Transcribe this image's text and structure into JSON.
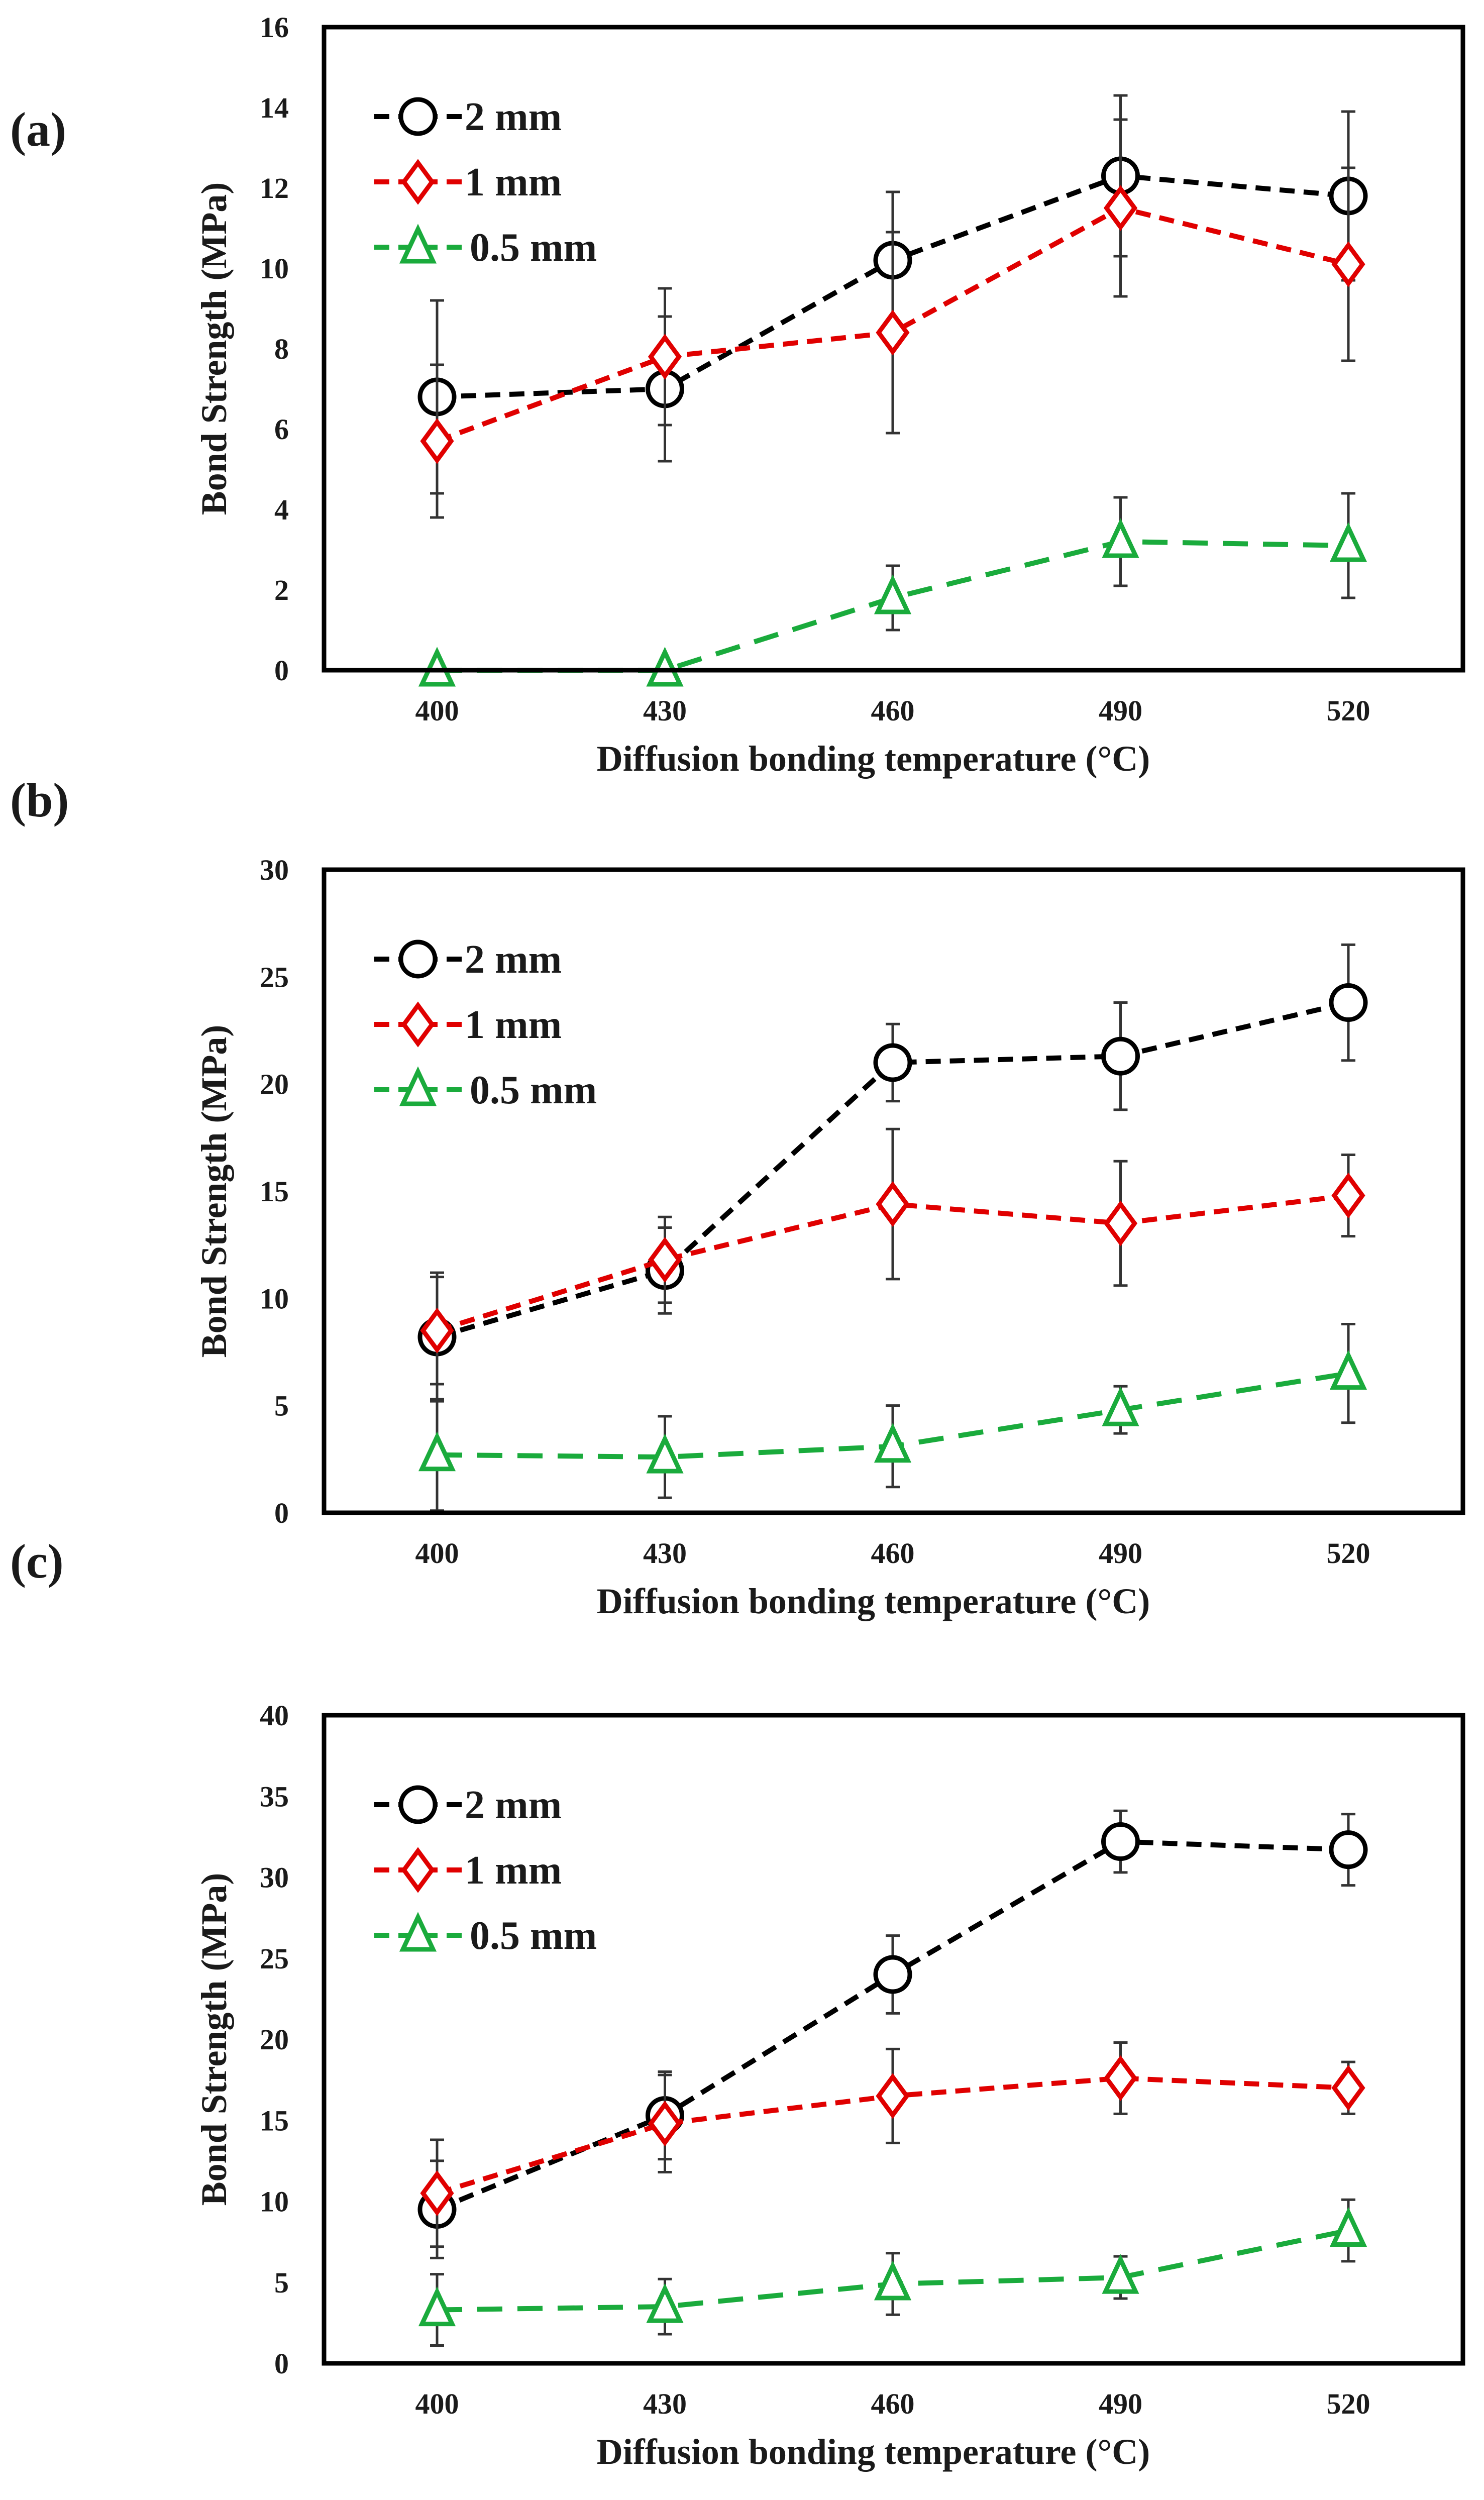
{
  "colors": {
    "2 mm": "#000000",
    "1 mm": "#e00000",
    "0.5 mm": "#1aab3c",
    "errorbar": "#333333"
  },
  "chart_data": [
    {
      "panel_label": "(a)",
      "type": "line",
      "xlabel": "Diffusion bonding temperature (°C)",
      "ylabel": "Bond Strength (MPa)",
      "categories": [
        "400",
        "430",
        "460",
        "490",
        "520"
      ],
      "ylim": [
        0,
        16
      ],
      "yticks": [
        0,
        2,
        4,
        6,
        8,
        10,
        12,
        14,
        16
      ],
      "legend_position": "top-left",
      "series": [
        {
          "name": "2 mm",
          "marker": "circle",
          "values": [
            6.8,
            7.0,
            10.2,
            12.3,
            11.8
          ],
          "errors": [
            2.4,
            1.8,
            1.7,
            2.0,
            2.1
          ]
        },
        {
          "name": "1 mm",
          "marker": "diamond",
          "values": [
            5.7,
            7.8,
            8.4,
            11.5,
            10.1
          ],
          "errors": [
            1.9,
            1.7,
            2.5,
            2.2,
            2.4
          ]
        },
        {
          "name": "0.5 mm",
          "marker": "triangle",
          "values": [
            0,
            0,
            1.8,
            3.2,
            3.1
          ],
          "errors": [
            0,
            0,
            0.8,
            1.1,
            1.3
          ]
        }
      ]
    },
    {
      "panel_label": "(b)",
      "type": "line",
      "xlabel": "Diffusion bonding temperature (°C)",
      "ylabel": "Bond Strength (MPa)",
      "categories": [
        "400",
        "430",
        "460",
        "490",
        "520"
      ],
      "ylim": [
        0,
        30
      ],
      "yticks": [
        0,
        5,
        10,
        15,
        20,
        25,
        30
      ],
      "legend_position": "top-left",
      "series": [
        {
          "name": "2 mm",
          "marker": "circle",
          "values": [
            8.2,
            11.3,
            21.0,
            21.3,
            23.8
          ],
          "errors": [
            3.0,
            2.0,
            1.8,
            2.5,
            2.7
          ]
        },
        {
          "name": "1 mm",
          "marker": "diamond",
          "values": [
            8.5,
            11.8,
            14.4,
            13.5,
            14.8
          ],
          "errors": [
            2.5,
            2.0,
            3.5,
            2.9,
            1.9
          ]
        },
        {
          "name": "0.5 mm",
          "marker": "triangle",
          "values": [
            2.7,
            2.6,
            3.1,
            4.8,
            6.5
          ],
          "errors": [
            2.6,
            1.9,
            1.9,
            1.1,
            2.3
          ]
        }
      ]
    },
    {
      "panel_label": "(c)",
      "type": "line",
      "xlabel": "Diffusion bonding temperature (°C)",
      "ylabel": "Bond Strength (MPa)",
      "categories": [
        "400",
        "430",
        "460",
        "490",
        "520"
      ],
      "ylim": [
        0,
        40
      ],
      "yticks": [
        0,
        5,
        10,
        15,
        20,
        25,
        30,
        35,
        40
      ],
      "legend_position": "top-left",
      "series": [
        {
          "name": "2 mm",
          "marker": "circle",
          "values": [
            9.5,
            15.3,
            24.0,
            32.2,
            31.7
          ],
          "errors": [
            3.0,
            2.7,
            2.4,
            1.9,
            2.2
          ]
        },
        {
          "name": "1 mm",
          "marker": "diamond",
          "values": [
            10.5,
            14.8,
            16.5,
            17.6,
            17.0
          ],
          "errors": [
            3.3,
            3.0,
            2.9,
            2.2,
            1.6
          ]
        },
        {
          "name": "0.5 mm",
          "marker": "triangle",
          "values": [
            3.3,
            3.5,
            4.9,
            5.3,
            8.2
          ],
          "errors": [
            2.2,
            1.7,
            1.9,
            1.3,
            1.9
          ]
        }
      ]
    }
  ]
}
